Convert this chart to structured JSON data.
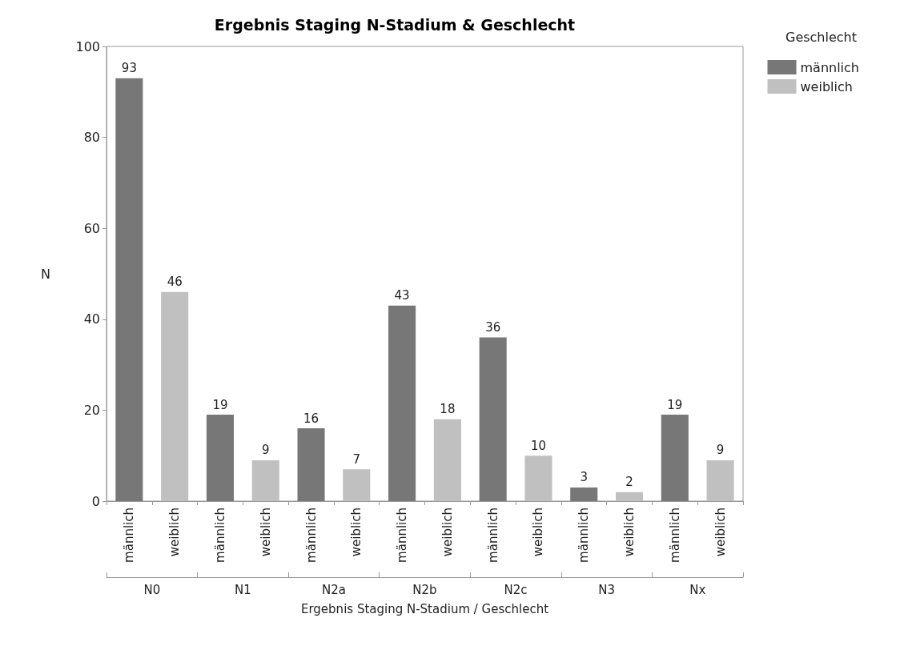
{
  "chart_data": {
    "type": "bar",
    "title": "Ergebnis Staging N-Stadium & Geschlecht",
    "xlabel": "Ergebnis Staging N-Stadium / Geschlecht",
    "ylabel": "N",
    "legend_title": "Geschlecht",
    "categories": [
      "N0",
      "N1",
      "N2a",
      "N2b",
      "N2c",
      "N3",
      "Nx"
    ],
    "series": [
      {
        "name": "männlich",
        "color": "#777777",
        "values": [
          93,
          19,
          16,
          43,
          36,
          3,
          19
        ]
      },
      {
        "name": "weiblich",
        "color": "#c0c0c0",
        "values": [
          46,
          9,
          7,
          18,
          10,
          2,
          9
        ]
      }
    ],
    "ylim": [
      0,
      100
    ],
    "yticks": [
      0,
      20,
      40,
      60,
      80,
      100
    ],
    "grid": false,
    "legend": "top right",
    "data_labels": true
  }
}
